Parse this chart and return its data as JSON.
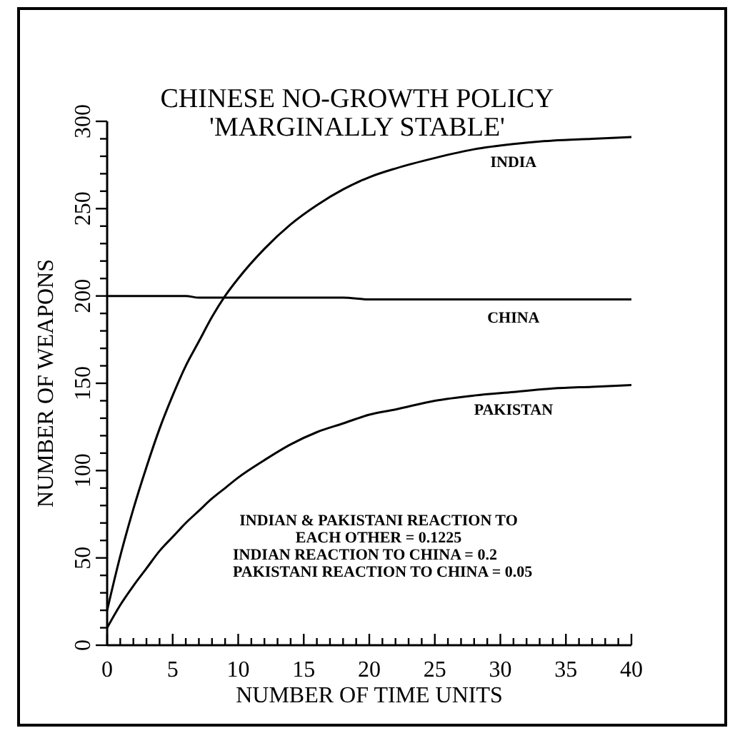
{
  "chart_data": {
    "type": "line",
    "title": "CHINESE NO-GROWTH POLICY",
    "subtitle": "'MARGINALLY STABLE'",
    "xlabel": "NUMBER OF TIME UNITS",
    "ylabel": "NUMBER OF WEAPONS",
    "x": [
      0,
      1,
      2,
      3,
      4,
      5,
      6,
      7,
      8,
      9,
      10,
      12,
      14,
      16,
      18,
      20,
      22,
      25,
      28,
      31,
      34,
      37,
      40
    ],
    "series": [
      {
        "name": "INDIA",
        "color": "#000000",
        "values": [
          20,
          51,
          78,
          102,
          124,
          143,
          160,
          174,
          188,
          200,
          210,
          227,
          241,
          252,
          261,
          268,
          273,
          279,
          284,
          287,
          289,
          290,
          291
        ]
      },
      {
        "name": "CHINA",
        "color": "#000000",
        "values": [
          200,
          200,
          200,
          200,
          200,
          200,
          200,
          199,
          199,
          199,
          199,
          199,
          199,
          199,
          199,
          198,
          198,
          198,
          198,
          198,
          198,
          198,
          198
        ]
      },
      {
        "name": "PAKISTAN",
        "color": "#000000",
        "values": [
          10,
          23,
          34,
          44,
          54,
          62,
          70,
          77,
          84,
          90,
          96,
          106,
          115,
          122,
          127,
          132,
          135,
          140,
          143,
          145,
          147,
          148,
          149
        ]
      }
    ],
    "xlim": [
      0,
      40
    ],
    "ylim": [
      0,
      300
    ],
    "xticks": [
      0,
      {
        "value": 1,
        "label": null
      },
      {
        "value": 2,
        "label": null
      },
      {
        "value": 3,
        "label": null
      },
      {
        "value": 4,
        "label": null
      },
      5,
      {
        "value": 6,
        "label": null
      },
      {
        "value": 7,
        "label": null
      },
      {
        "value": 8,
        "label": null
      },
      {
        "value": 9,
        "label": null
      },
      10,
      {
        "value": 11,
        "label": null
      },
      {
        "value": 12,
        "label": null
      },
      {
        "value": 13,
        "label": null
      },
      {
        "value": 14,
        "label": null
      },
      15,
      {
        "value": 16,
        "label": null
      },
      {
        "value": 17,
        "label": null
      },
      {
        "value": 18,
        "label": null
      },
      {
        "value": 19,
        "label": null
      },
      20,
      {
        "value": 21,
        "label": null
      },
      {
        "value": 22,
        "label": null
      },
      {
        "value": 23,
        "label": null
      },
      {
        "value": 24,
        "label": null
      },
      25,
      {
        "value": 26,
        "label": null
      },
      {
        "value": 27,
        "label": null
      },
      {
        "value": 28,
        "label": null
      },
      {
        "value": 29,
        "label": null
      },
      30,
      {
        "value": 31,
        "label": null
      },
      {
        "value": 32,
        "label": null
      },
      {
        "value": 33,
        "label": null
      },
      {
        "value": 34,
        "label": null
      },
      35,
      {
        "value": 36,
        "label": null
      },
      {
        "value": 37,
        "label": null
      },
      {
        "value": 38,
        "label": null
      },
      {
        "value": 39,
        "label": null
      },
      40
    ],
    "yticks": [
      0,
      {
        "value": 10,
        "label": null
      },
      {
        "value": 20,
        "label": null
      },
      {
        "value": 30,
        "label": null
      },
      {
        "value": 40,
        "label": null
      },
      50,
      {
        "value": 60,
        "label": null
      },
      {
        "value": 70,
        "label": null
      },
      {
        "value": 80,
        "label": null
      },
      {
        "value": 90,
        "label": null
      },
      100,
      {
        "value": 110,
        "label": null
      },
      {
        "value": 120,
        "label": null
      },
      {
        "value": 130,
        "label": null
      },
      {
        "value": 140,
        "label": null
      },
      150,
      {
        "value": 160,
        "label": null
      },
      {
        "value": 170,
        "label": null
      },
      {
        "value": 180,
        "label": null
      },
      {
        "value": 190,
        "label": null
      },
      200,
      {
        "value": 210,
        "label": null
      },
      {
        "value": 220,
        "label": null
      },
      {
        "value": 230,
        "label": null
      },
      {
        "value": 240,
        "label": null
      },
      250,
      {
        "value": 260,
        "label": null
      },
      {
        "value": 270,
        "label": null
      },
      {
        "value": 280,
        "label": null
      },
      {
        "value": 290,
        "label": null
      },
      300
    ],
    "annotations": [
      "INDIAN & PAKISTANI REACTION TO EACH OTHER = 0.1225",
      "INDIAN REACTION TO CHINA = 0.2",
      "PAKISTANI REACTION TO CHINA = 0.05"
    ],
    "grid": false,
    "marker": "none",
    "line_style": "solid"
  }
}
